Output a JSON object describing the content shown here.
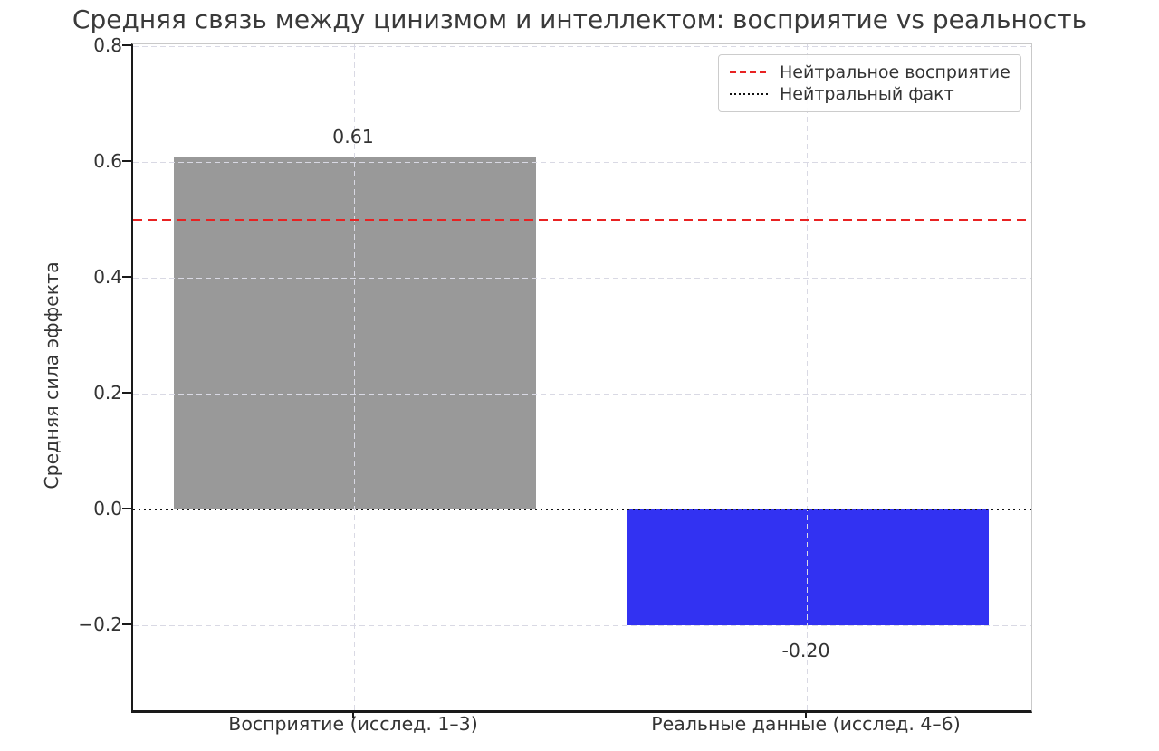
{
  "chart_data": {
    "type": "bar",
    "title": "Средняя связь между цинизмом и интеллектом: восприятие vs реальность",
    "ylabel": "Средняя сила эффекта",
    "xlabel": "",
    "categories": [
      "Восприятие (исслед. 1–3)",
      "Реальные данные (исслед. 4–6)"
    ],
    "values": [
      0.61,
      -0.2
    ],
    "bar_labels": [
      "0.61",
      "-0.20"
    ],
    "bar_colors": [
      "#999999",
      "#3232f2"
    ],
    "yticks": [
      "0.8",
      "0.6",
      "0.4",
      "0.2",
      "0.0",
      "−0.2"
    ],
    "ytick_values": [
      0.8,
      0.6,
      0.4,
      0.2,
      0.0,
      -0.2
    ],
    "ylim": [
      -0.35,
      0.8
    ],
    "grid": true,
    "legend": {
      "position": "upper right",
      "entries": [
        {
          "label": "Нейтральное восприятие",
          "style": "dashed",
          "color": "#e82222",
          "value": 0.5
        },
        {
          "label": "Нейтральный факт",
          "style": "dotted",
          "color": "#111111",
          "value": 0.0
        }
      ]
    }
  }
}
